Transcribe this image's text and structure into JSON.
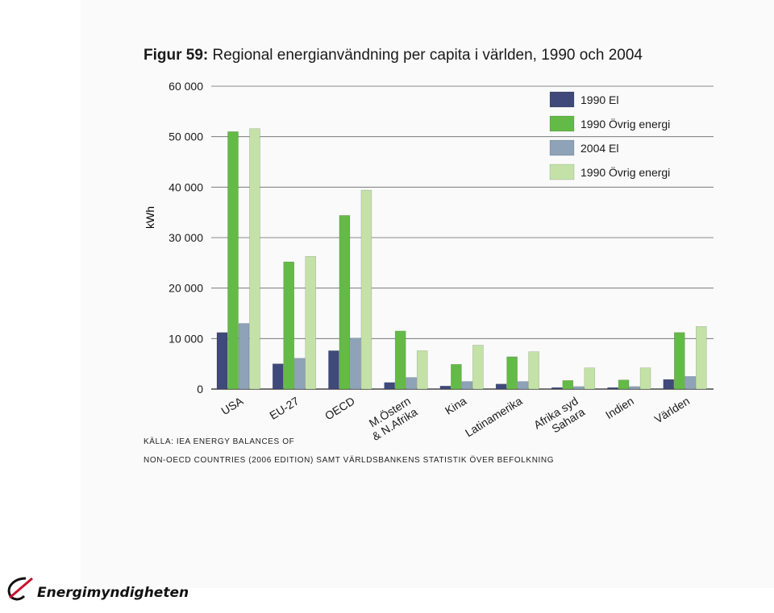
{
  "title": {
    "label": "Figur 59:",
    "text": " Regional energianvändning per capita i världen, 1990 och 2004"
  },
  "source": {
    "line1": "KÄLLA: IEA ENERGY BALANCES OF",
    "line2": "NON-OECD COUNTRIES (2006 EDITION) SAMT VÄRLDSBANKENS STATISTIK ÖVER BEFOLKNING"
  },
  "logo": {
    "text": "Energimyndigheten"
  },
  "chart_data": {
    "type": "bar",
    "ylabel": "kWh",
    "ylim": [
      0,
      60000
    ],
    "yticks": [
      "0",
      "10 000",
      "20 000",
      "30 000",
      "40 000",
      "50 000",
      "60 000"
    ],
    "ytick_values": [
      0,
      10000,
      20000,
      30000,
      40000,
      50000,
      60000
    ],
    "grid": true,
    "legend_position": "top-right",
    "categories": [
      [
        "USA"
      ],
      [
        "EU-27"
      ],
      [
        "OECD"
      ],
      [
        "M.Östern",
        "& N.Afrika"
      ],
      [
        "Kina"
      ],
      [
        "Latinamerika"
      ],
      [
        "Afrika syd",
        "Sahara"
      ],
      [
        "Indien"
      ],
      [
        "Världen"
      ]
    ],
    "series": [
      {
        "name": "1990 El",
        "color": "#3f4a7a",
        "values": [
          11200,
          5000,
          7600,
          1300,
          600,
          1000,
          300,
          300,
          1900
        ]
      },
      {
        "name": "1990 Övrig energi",
        "color": "#64ba46",
        "values": [
          51000,
          25200,
          34400,
          11500,
          4900,
          6400,
          1700,
          1800,
          11200
        ]
      },
      {
        "name": "2004 El",
        "color": "#8ea2b8",
        "values": [
          13000,
          6100,
          10100,
          2300,
          1500,
          1500,
          500,
          500,
          2500
        ]
      },
      {
        "name": "1990 Övrig energi",
        "color": "#c4e2a8",
        "values": [
          51600,
          26300,
          39400,
          7600,
          8700,
          7400,
          4200,
          4200,
          12400
        ]
      }
    ]
  }
}
